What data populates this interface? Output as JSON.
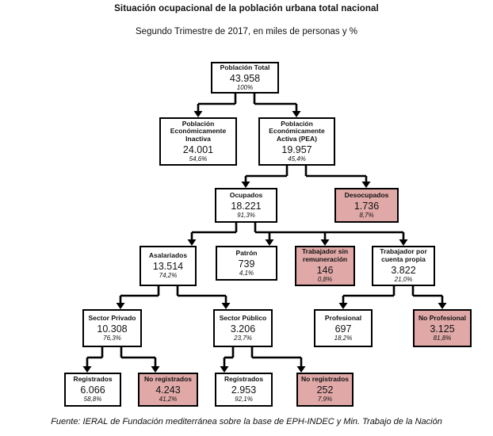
{
  "title": "Situación ocupacional de la población urbana total nacional",
  "subtitle": "Segundo Trimestre de 2017, en miles de personas y %",
  "source": "Fuente: IERAL de Fundación mediterránea sobre la base de EPH-INDEC y Min. Trabajo de la Nación",
  "colors": {
    "highlight_bg": "#e0a9a8",
    "normal_bg": "#ffffff",
    "border": "#000000",
    "line": "#000000"
  },
  "nodes": {
    "total": {
      "label": "Población Total",
      "value": "43.958",
      "percent": "100%",
      "parent": null,
      "highlighted": false
    },
    "inactiva": {
      "label": "Población Económicamente Inactiva",
      "value": "24.001",
      "percent": "54,6%",
      "parent": "total",
      "highlighted": false
    },
    "pea": {
      "label": "Población Económicamente Activa (PEA)",
      "value": "19.957",
      "percent": "45,4%",
      "parent": "total",
      "highlighted": false
    },
    "ocupados": {
      "label": "Ocupados",
      "value": "18.221",
      "percent": "91,3%",
      "parent": "pea",
      "highlighted": false
    },
    "desocupados": {
      "label": "Desocupados",
      "value": "1.736",
      "percent": "8,7%",
      "parent": "pea",
      "highlighted": true
    },
    "asalariados": {
      "label": "Asalariados",
      "value": "13.514",
      "percent": "74,2%",
      "parent": "ocupados",
      "highlighted": false
    },
    "patron": {
      "label": "Patrón",
      "value": "739",
      "percent": "4,1%",
      "parent": "ocupados",
      "highlighted": false
    },
    "trab_sin_rem": {
      "label": "Trabajador sin remuneración",
      "value": "146",
      "percent": "0,8%",
      "parent": "ocupados",
      "highlighted": true
    },
    "cuenta_propia": {
      "label": "Trabajador por cuenta propia",
      "value": "3.822",
      "percent": "21,0%",
      "parent": "ocupados",
      "highlighted": false
    },
    "sector_privado": {
      "label": "Sector Privado",
      "value": "10.308",
      "percent": "76,3%",
      "parent": "asalariados",
      "highlighted": false
    },
    "sector_publico": {
      "label": "Sector Público",
      "value": "3.206",
      "percent": "23,7%",
      "parent": "asalariados",
      "highlighted": false
    },
    "profesional": {
      "label": "Profesional",
      "value": "697",
      "percent": "18,2%",
      "parent": "cuenta_propia",
      "highlighted": false
    },
    "no_profesional": {
      "label": "No Profesional",
      "value": "3.125",
      "percent": "81,8%",
      "parent": "cuenta_propia",
      "highlighted": true
    },
    "registrados_privado": {
      "label": "Registrados",
      "value": "6.066",
      "percent": "58,8%",
      "parent": "sector_privado",
      "highlighted": false
    },
    "no_registrados_privado": {
      "label": "No registrados",
      "value": "4.243",
      "percent": "41,2%",
      "parent": "sector_privado",
      "highlighted": true
    },
    "registrados_publico": {
      "label": "Registrados",
      "value": "2.953",
      "percent": "92,1%",
      "parent": "sector_publico",
      "highlighted": false
    },
    "no_registrados_publico": {
      "label": "No registrados",
      "value": "252",
      "percent": "7,9%",
      "parent": "sector_publico",
      "highlighted": true
    }
  }
}
